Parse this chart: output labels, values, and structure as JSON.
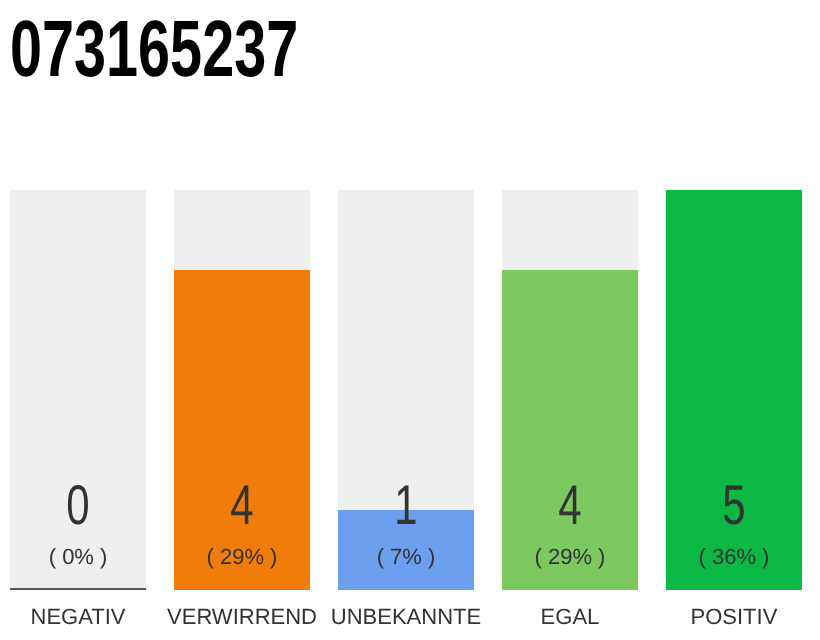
{
  "chart_data": {
    "type": "bar",
    "title": "073165237",
    "categories": [
      "NEGATIV",
      "VERWIRREND",
      "UNBEKANNTE",
      "EGAL",
      "POSITIV"
    ],
    "values": [
      0,
      4,
      1,
      4,
      5
    ],
    "colors": [
      "#555555",
      "#f07c0b",
      "#6ca0ef",
      "#7cc95f",
      "#0bb843"
    ],
    "data_labels": true,
    "annotations": [
      "( 0% )",
      "( 29% )",
      "( 7% )",
      "( 29% )",
      "( 36% )"
    ],
    "tick_labels": "x"
  }
}
